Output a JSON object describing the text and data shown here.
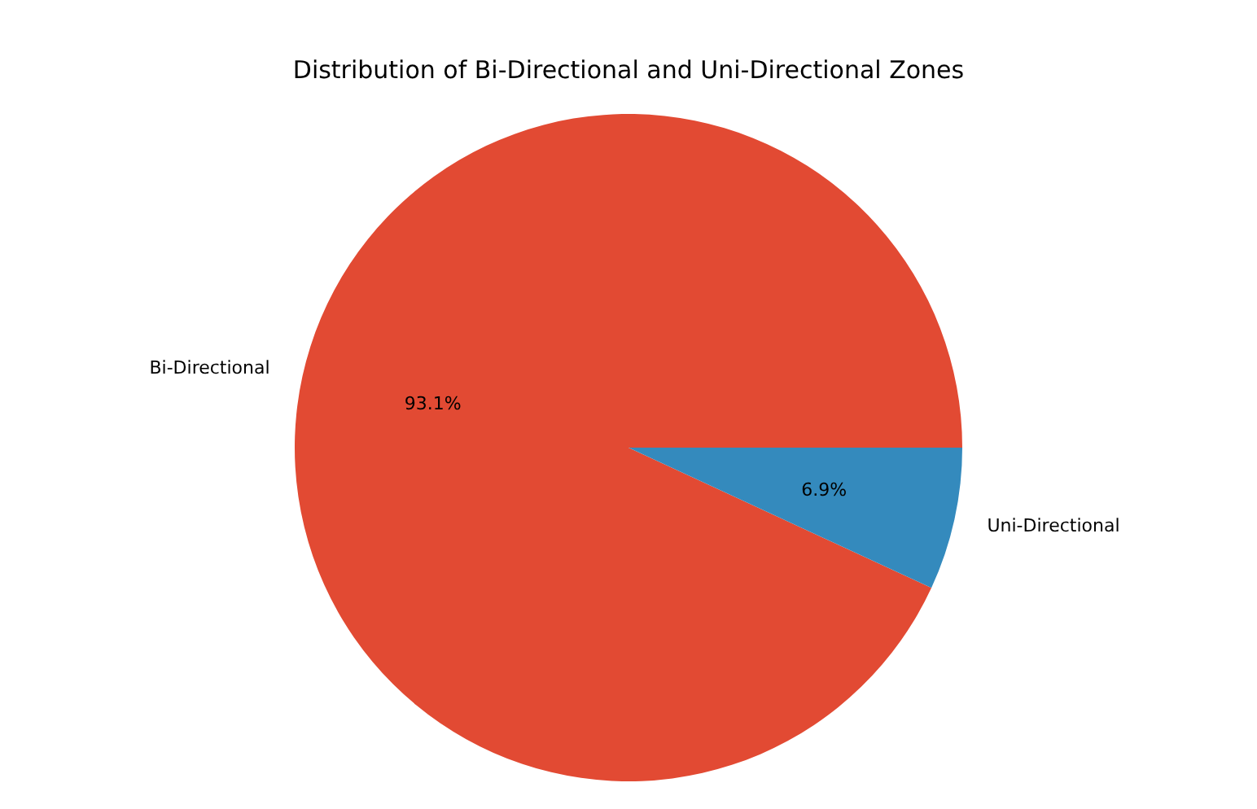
{
  "chart_data": {
    "type": "pie",
    "title": "Distribution of Bi-Directional and Uni-Directional Zones",
    "categories": [
      "Bi-Directional",
      "Uni-Directional"
    ],
    "values": [
      93.1,
      6.9
    ],
    "colors": [
      "#e24a33",
      "#348abd"
    ],
    "value_labels": [
      "93.1%",
      "6.9%"
    ]
  }
}
